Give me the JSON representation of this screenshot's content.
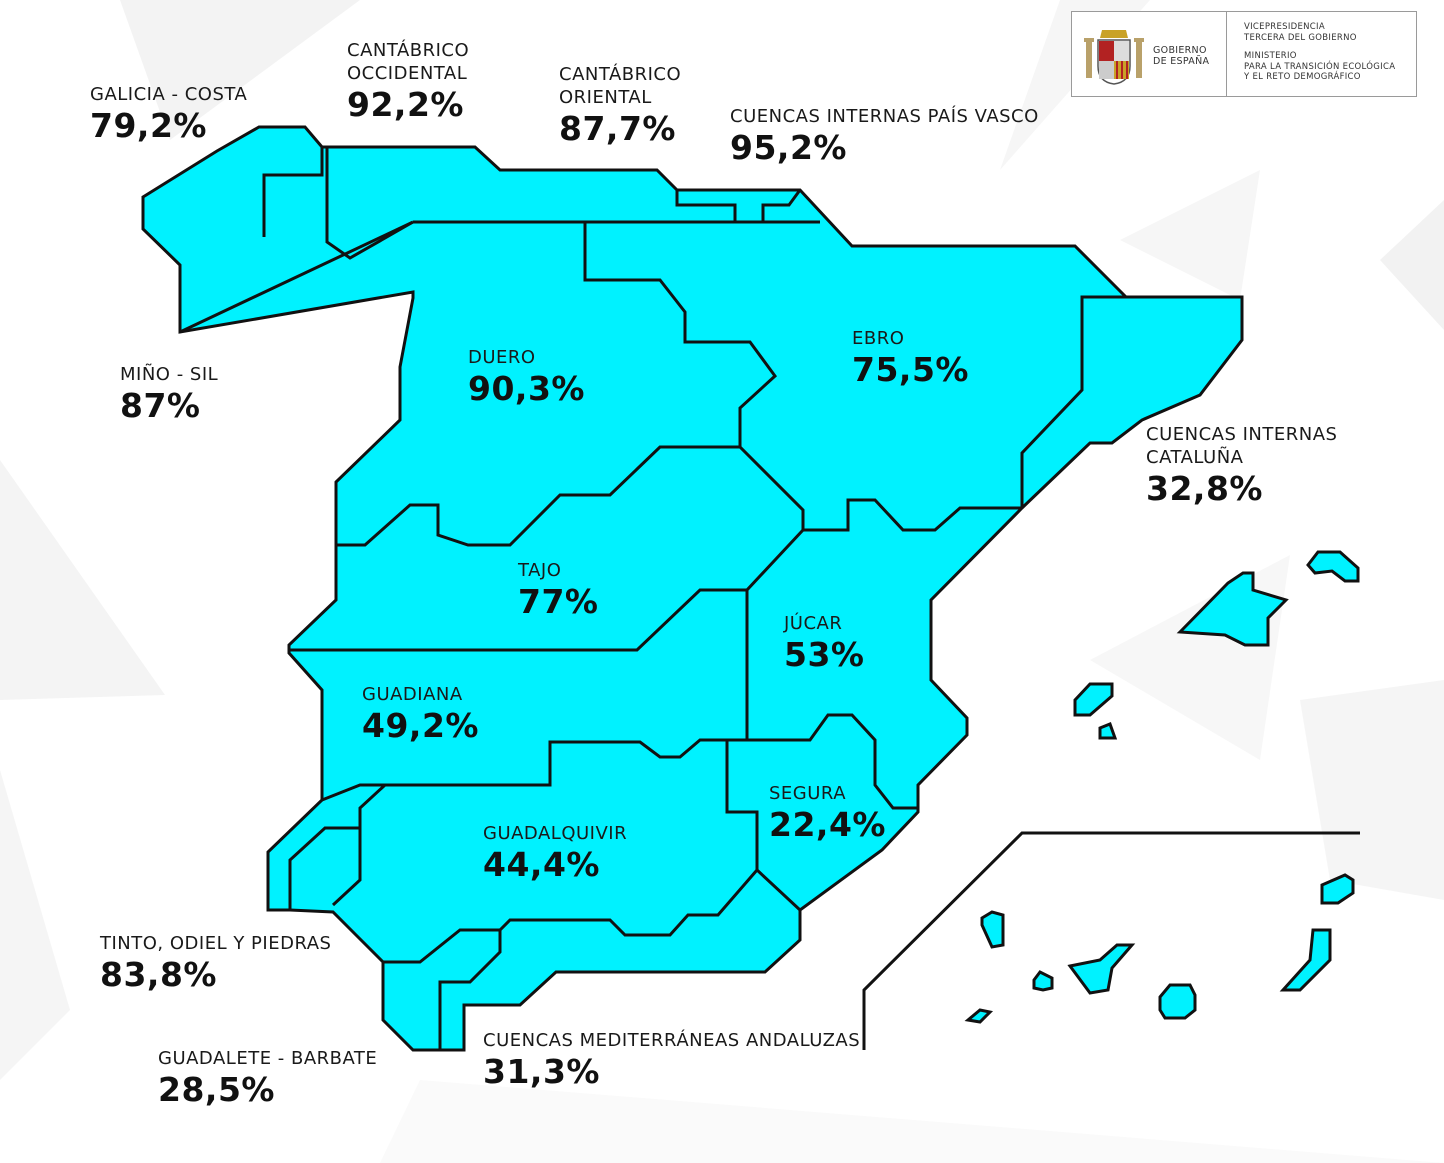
{
  "header": {
    "government": "GOBIERNO\nDE ESPAÑA",
    "vicepresidency": "VICEPRESIDENCIA\nTERCERA DEL GOBIERNO",
    "ministry": "MINISTERIO\nPARA LA TRANSICIÓN ECOLÓGICA\nY EL RETO DEMOGRÁFICO"
  },
  "colors": {
    "basin_fill": "#00f2ff",
    "outline": "#111111",
    "background": "#ffffff"
  },
  "basins": [
    {
      "id": "galicia-costa",
      "name": "GALICIA - COSTA",
      "value": "79,2%"
    },
    {
      "id": "cantabrico-occidental",
      "name": "CANTÁBRICO\nOCCIDENTAL",
      "value": "92,2%"
    },
    {
      "id": "cantabrico-oriental",
      "name": "CANTÁBRICO\nORIENTAL",
      "value": "87,7%"
    },
    {
      "id": "pais-vasco",
      "name": "CUENCAS INTERNAS PAÍS VASCO",
      "value": "95,2%"
    },
    {
      "id": "mino-sil",
      "name": "MIÑO - SIL",
      "value": "87%"
    },
    {
      "id": "duero",
      "name": "DUERO",
      "value": "90,3%"
    },
    {
      "id": "ebro",
      "name": "EBRO",
      "value": "75,5%"
    },
    {
      "id": "cataluna",
      "name": "CUENCAS INTERNAS\nCATALUÑA",
      "value": "32,8%"
    },
    {
      "id": "tajo",
      "name": "TAJO",
      "value": "77%"
    },
    {
      "id": "jucar",
      "name": "JÚCAR",
      "value": "53%"
    },
    {
      "id": "guadiana",
      "name": "GUADIANA",
      "value": "49,2%"
    },
    {
      "id": "segura",
      "name": "SEGURA",
      "value": "22,4%"
    },
    {
      "id": "guadalquivir",
      "name": "GUADALQUIVIR",
      "value": "44,4%"
    },
    {
      "id": "tinto-odiel",
      "name": "TINTO, ODIEL Y PIEDRAS",
      "value": "83,8%"
    },
    {
      "id": "guadalete-barbate",
      "name": "GUADALETE - BARBATE",
      "value": "28,5%"
    },
    {
      "id": "mediterraneas-andaluzas",
      "name": "CUENCAS MEDITERRÁNEAS ANDALUZAS",
      "value": "31,3%"
    }
  ]
}
